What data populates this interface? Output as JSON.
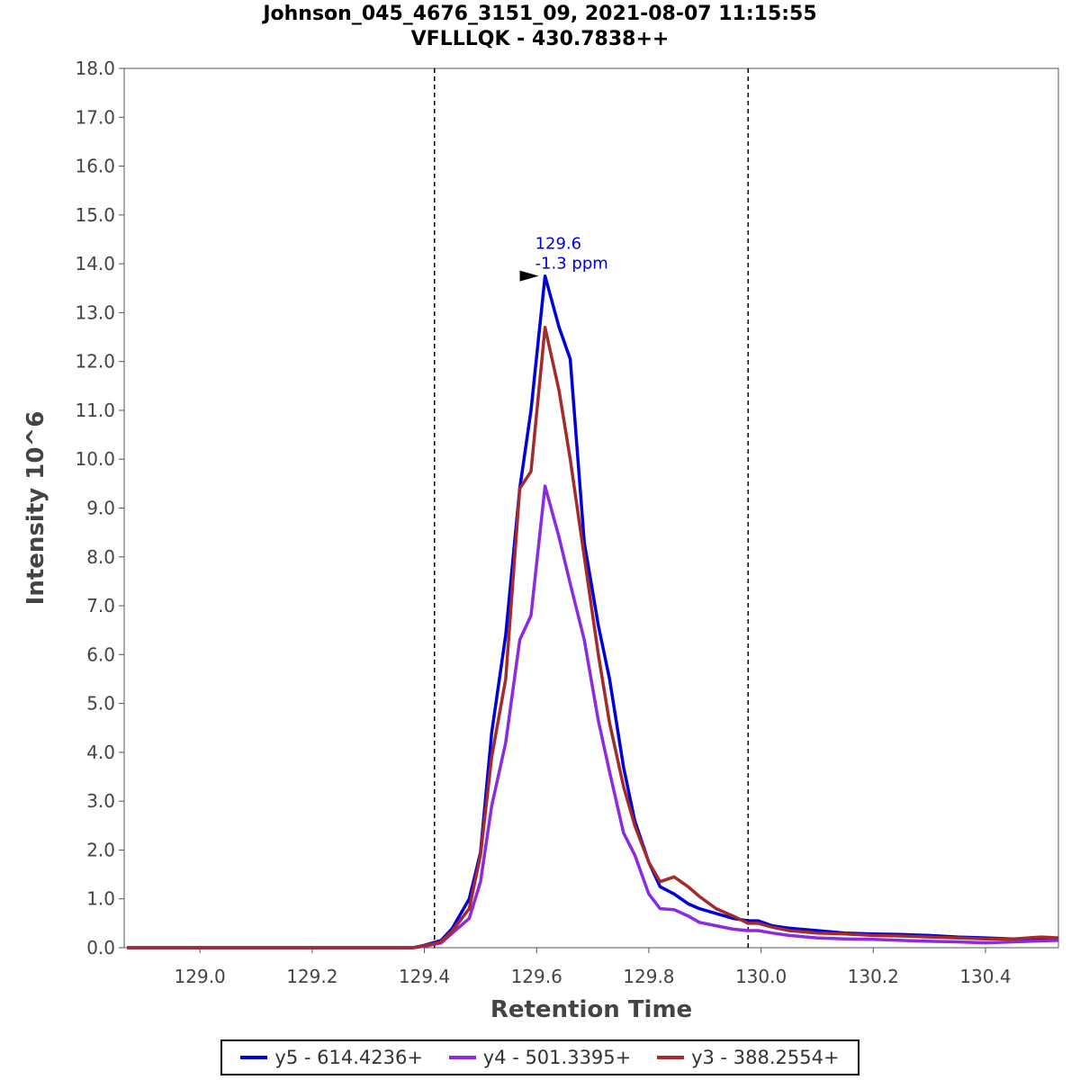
{
  "title": {
    "line1": "Johnson_045_4676_3151_09, 2021-08-07 11:15:55",
    "line2": "VFLLLQK - 430.7838++"
  },
  "chart_data": {
    "type": "line",
    "title": "Johnson_045_4676_3151_09, 2021-08-07 11:15:55 VFLLLQK - 430.7838++",
    "xlabel": "Retention Time",
    "ylabel": "Intensity 10^6",
    "xlim": [
      128.865,
      130.53
    ],
    "ylim": [
      0,
      18.0
    ],
    "x_ticks": [
      "129.0",
      "129.2",
      "129.4",
      "129.6",
      "129.8",
      "130.0",
      "130.2",
      "130.4"
    ],
    "y_ticks": [
      "0.0",
      "1.0",
      "2.0",
      "3.0",
      "4.0",
      "5.0",
      "6.0",
      "7.0",
      "8.0",
      "9.0",
      "10.0",
      "11.0",
      "12.0",
      "13.0",
      "14.0",
      "15.0",
      "16.0",
      "17.0",
      "18.0"
    ],
    "boundaries": [
      129.418,
      129.977
    ],
    "annotation": {
      "x": 129.615,
      "y": 13.75,
      "line1": "129.6",
      "line2": "-1.3 ppm",
      "color": "#0000dd"
    },
    "series": [
      {
        "name": "y5 - 614.4236+",
        "color": "#0000dd",
        "x": [
          128.87,
          128.95,
          129.0,
          129.1,
          129.2,
          129.3,
          129.38,
          129.4,
          129.43,
          129.45,
          129.48,
          129.5,
          129.52,
          129.545,
          129.57,
          129.59,
          129.615,
          129.64,
          129.66,
          129.685,
          129.71,
          129.73,
          129.755,
          129.775,
          129.8,
          129.82,
          129.845,
          129.87,
          129.89,
          129.92,
          129.95,
          129.977,
          129.995,
          130.02,
          130.05,
          130.1,
          130.15,
          130.2,
          130.25,
          130.3,
          130.35,
          130.4,
          130.45,
          130.5,
          130.53
        ],
        "y": [
          0,
          0,
          0,
          0,
          0,
          0,
          0,
          0.05,
          0.15,
          0.4,
          1.0,
          1.95,
          4.4,
          6.4,
          9.4,
          11.0,
          13.75,
          12.7,
          12.05,
          8.3,
          6.6,
          5.5,
          3.7,
          2.6,
          1.75,
          1.25,
          1.1,
          0.9,
          0.8,
          0.7,
          0.6,
          0.55,
          0.55,
          0.45,
          0.4,
          0.35,
          0.3,
          0.28,
          0.27,
          0.25,
          0.22,
          0.2,
          0.18,
          0.18,
          0.17
        ]
      },
      {
        "name": "y4 - 501.3395+",
        "color": "#8a2be2",
        "x": [
          128.87,
          128.95,
          129.0,
          129.1,
          129.2,
          129.3,
          129.38,
          129.4,
          129.43,
          129.45,
          129.48,
          129.5,
          129.52,
          129.545,
          129.57,
          129.59,
          129.615,
          129.64,
          129.66,
          129.685,
          129.71,
          129.73,
          129.755,
          129.775,
          129.8,
          129.82,
          129.845,
          129.87,
          129.89,
          129.92,
          129.95,
          129.977,
          129.995,
          130.02,
          130.05,
          130.1,
          130.15,
          130.2,
          130.25,
          130.3,
          130.35,
          130.4,
          130.45,
          130.5,
          130.53
        ],
        "y": [
          0,
          0,
          0,
          0,
          0,
          0,
          0,
          0.03,
          0.1,
          0.3,
          0.6,
          1.35,
          2.9,
          4.2,
          6.3,
          6.8,
          9.45,
          8.4,
          7.45,
          6.3,
          4.65,
          3.6,
          2.35,
          1.9,
          1.1,
          0.8,
          0.78,
          0.65,
          0.52,
          0.45,
          0.38,
          0.35,
          0.35,
          0.3,
          0.25,
          0.2,
          0.18,
          0.17,
          0.15,
          0.13,
          0.12,
          0.1,
          0.12,
          0.14,
          0.15
        ]
      },
      {
        "name": "y3 - 388.2554+",
        "color": "#a52a2a",
        "x": [
          128.87,
          128.95,
          129.0,
          129.1,
          129.2,
          129.3,
          129.38,
          129.4,
          129.43,
          129.45,
          129.48,
          129.5,
          129.52,
          129.545,
          129.57,
          129.59,
          129.615,
          129.64,
          129.66,
          129.685,
          129.71,
          129.73,
          129.755,
          129.775,
          129.8,
          129.82,
          129.845,
          129.87,
          129.89,
          129.92,
          129.95,
          129.977,
          129.995,
          130.02,
          130.05,
          130.1,
          130.15,
          130.2,
          130.25,
          130.3,
          130.35,
          130.4,
          130.45,
          130.5,
          130.53
        ],
        "y": [
          0,
          0,
          0,
          0,
          0,
          0,
          0,
          0.04,
          0.12,
          0.35,
          0.8,
          1.9,
          3.9,
          5.5,
          9.4,
          9.75,
          12.7,
          11.4,
          10.0,
          8.0,
          6.0,
          4.6,
          3.3,
          2.5,
          1.75,
          1.35,
          1.45,
          1.25,
          1.05,
          0.8,
          0.65,
          0.5,
          0.5,
          0.42,
          0.35,
          0.3,
          0.28,
          0.25,
          0.24,
          0.22,
          0.2,
          0.18,
          0.18,
          0.22,
          0.2
        ]
      }
    ]
  }
}
